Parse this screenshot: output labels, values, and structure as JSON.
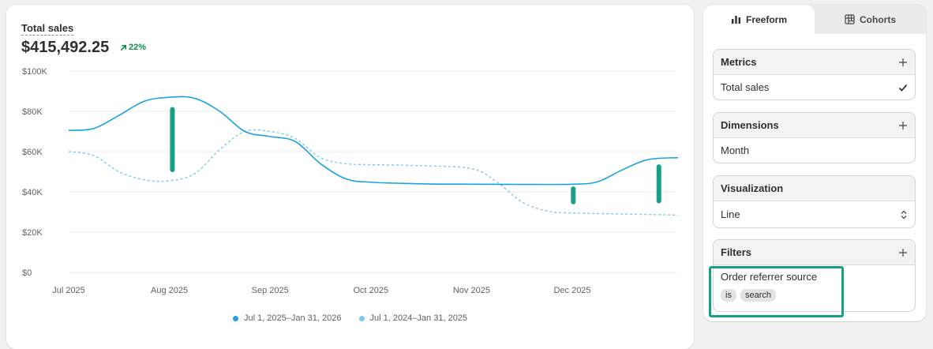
{
  "metric": {
    "title": "Total sales",
    "value": "$415,492.25",
    "change": "22%"
  },
  "colors": {
    "current": "#1aa3e0",
    "previous": "#7ec9ec",
    "annotation": "#16a085",
    "positive": "#0c8f4a"
  },
  "chart_data": {
    "type": "line",
    "title": "Total sales",
    "xlabel": "",
    "ylabel": "",
    "ylim": [
      0,
      100000
    ],
    "y_ticks": [
      {
        "value": 0,
        "label": "$0"
      },
      {
        "value": 20000,
        "label": "$20K"
      },
      {
        "value": 40000,
        "label": "$40K"
      },
      {
        "value": 60000,
        "label": "$60K"
      },
      {
        "value": 80000,
        "label": "$80K"
      },
      {
        "value": 100000,
        "label": "$100K"
      }
    ],
    "x_ticks": [
      {
        "t": 0,
        "label": "Jul 2025"
      },
      {
        "t": 1,
        "label": "Aug 2025"
      },
      {
        "t": 2,
        "label": "Sep 2025"
      },
      {
        "t": 3,
        "label": "Oct 2025"
      },
      {
        "t": 4,
        "label": "Nov 2025"
      },
      {
        "t": 5,
        "label": "Dec 2025"
      }
    ],
    "xlim": [
      0,
      6.05
    ],
    "series": [
      {
        "name": "Jul 1, 2025–Jan 31, 2026",
        "style": "solid",
        "points": [
          [
            0,
            70500
          ],
          [
            0.25,
            71500
          ],
          [
            0.5,
            78000
          ],
          [
            0.75,
            85000
          ],
          [
            1,
            87000
          ],
          [
            1.25,
            86500
          ],
          [
            1.5,
            80000
          ],
          [
            1.75,
            70000
          ],
          [
            2,
            67500
          ],
          [
            2.25,
            65000
          ],
          [
            2.5,
            54000
          ],
          [
            2.75,
            46500
          ],
          [
            3,
            44800
          ],
          [
            3.5,
            44000
          ],
          [
            4,
            43800
          ],
          [
            4.5,
            43700
          ],
          [
            5,
            43800
          ],
          [
            5.25,
            45000
          ],
          [
            5.5,
            51000
          ],
          [
            5.75,
            56000
          ],
          [
            6.05,
            57000
          ]
        ]
      },
      {
        "name": "Jul 1, 2024–Jan 31, 2025",
        "style": "dashed",
        "points": [
          [
            0,
            60000
          ],
          [
            0.25,
            58000
          ],
          [
            0.5,
            50000
          ],
          [
            0.75,
            46000
          ],
          [
            1,
            45500
          ],
          [
            1.25,
            49000
          ],
          [
            1.5,
            61000
          ],
          [
            1.75,
            70000
          ],
          [
            2,
            70000
          ],
          [
            2.25,
            66500
          ],
          [
            2.5,
            57000
          ],
          [
            2.75,
            54000
          ],
          [
            3,
            53500
          ],
          [
            3.5,
            53000
          ],
          [
            4,
            51500
          ],
          [
            4.25,
            45000
          ],
          [
            4.5,
            35000
          ],
          [
            4.75,
            30500
          ],
          [
            5,
            29500
          ],
          [
            5.5,
            29000
          ],
          [
            6.05,
            28500
          ]
        ]
      }
    ],
    "annotations": [
      {
        "t": 1.03,
        "y_from": 81000,
        "y_to": 51000
      },
      {
        "t": 5.01,
        "y_from": 41500,
        "y_to": 35000
      },
      {
        "t": 5.86,
        "y_from": 52500,
        "y_to": 35500
      }
    ]
  },
  "legend": [
    {
      "label": "Jul 1, 2025–Jan 31, 2026",
      "color": "#1aa3e0"
    },
    {
      "label": "Jul 1, 2024–Jan 31, 2025",
      "color": "#7ec9ec"
    }
  ],
  "tabs": [
    {
      "label": "Freeform",
      "icon": "bar-chart-icon",
      "selected": true
    },
    {
      "label": "Cohorts",
      "icon": "grid-icon",
      "selected": false
    }
  ],
  "sections": {
    "metrics": {
      "title": "Metrics",
      "value": "Total sales"
    },
    "dimensions": {
      "title": "Dimensions",
      "value": "Month"
    },
    "visualization": {
      "title": "Visualization",
      "value": "Line"
    },
    "filters": {
      "title": "Filters",
      "field": "Order referrer source",
      "operator": "is",
      "value": "search"
    }
  }
}
